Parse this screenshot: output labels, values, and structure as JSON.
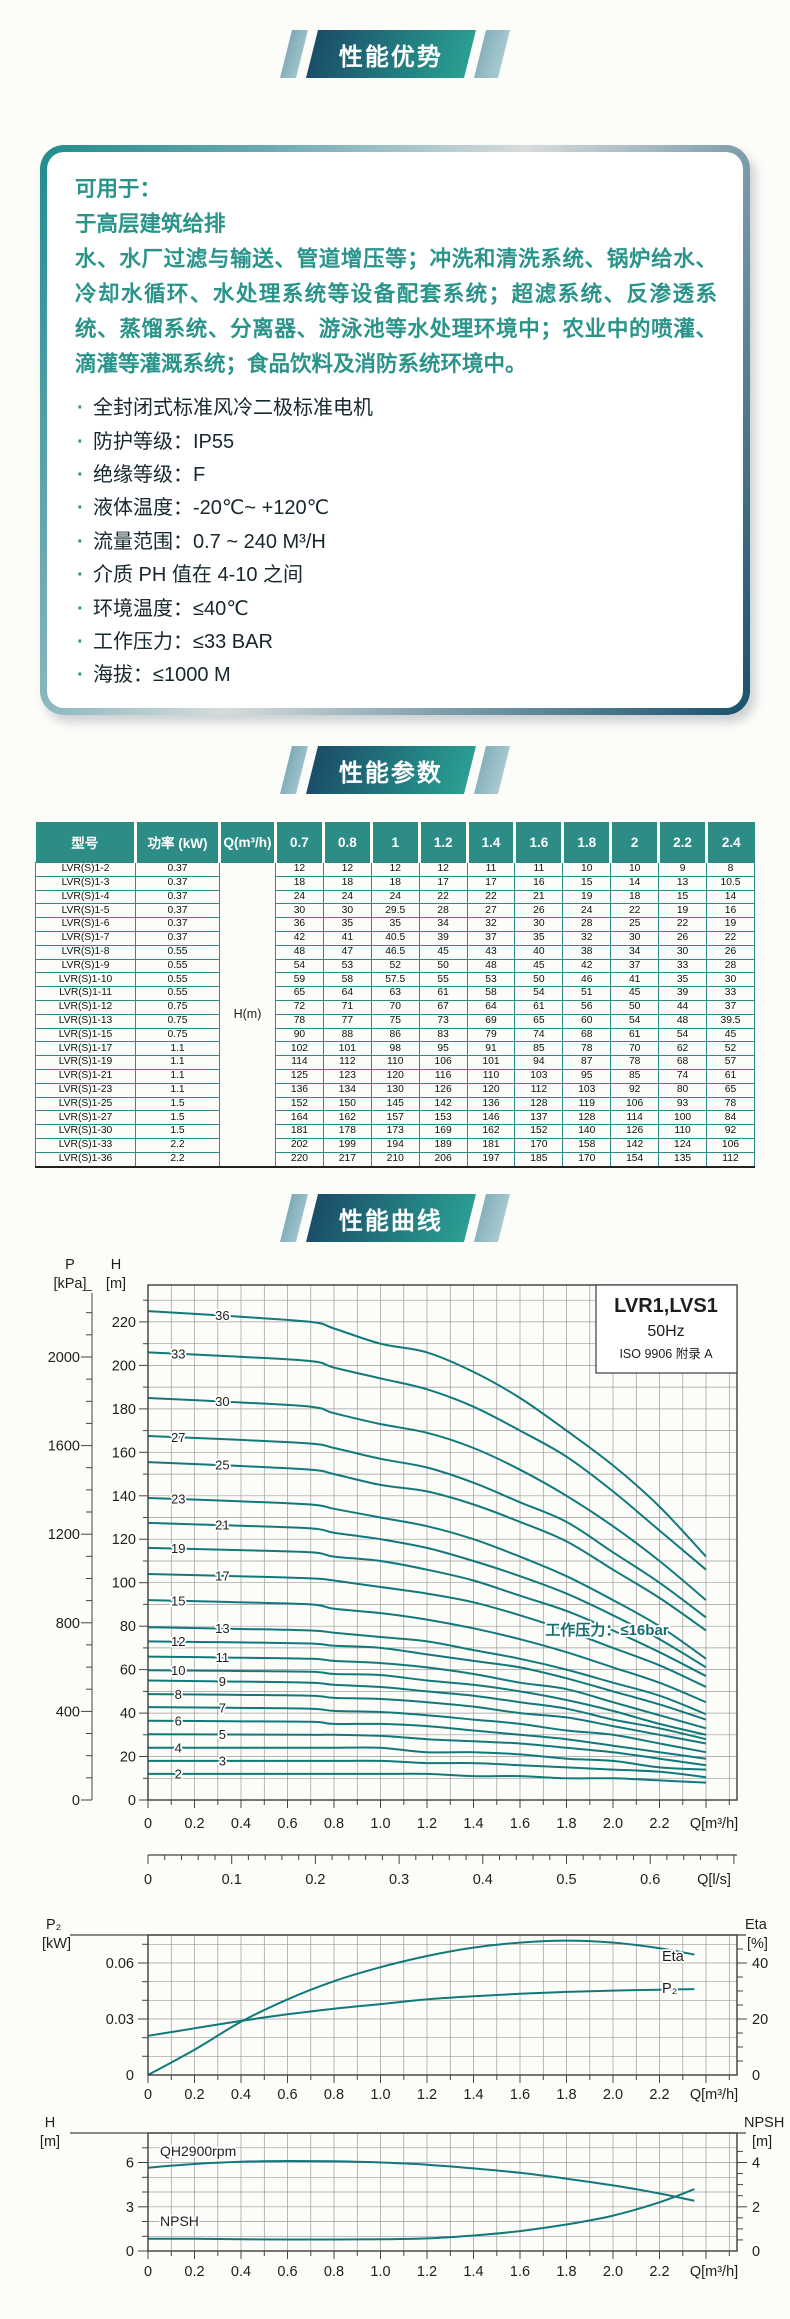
{
  "page": {
    "background": "#fcfcf9",
    "accent_teal": "#2a948b",
    "curve_color": "#12797b",
    "header_gradient": [
      "#1a4c68",
      "#2aa092"
    ],
    "table_header_color": "#2e8c87"
  },
  "sections": {
    "advantages": {
      "title": "性能优势"
    },
    "parameters": {
      "title": "性能参数"
    },
    "curves": {
      "title": "性能曲线"
    }
  },
  "intro": {
    "paragraph": "可用于：\n于高层建筑给排\n水、水厂过滤与输送、管道增压等；冲洗和清洗系统、锅炉给水、冷却水循环、水处理系统等设备配套系统；超滤系统、反渗透系统、蒸馏系统、分离器、游泳池等水处理环境中；农业中的喷灌、滴灌等灌溉系统；食品饮料及消防系统环境中。",
    "bullets": [
      "全封闭式标准风冷二极标准电机",
      "防护等级：IP55",
      "绝缘等级：F",
      "液体温度：-20℃~ +120℃",
      "流量范围：0.7 ~ 240 M³/H",
      "介质 PH 值在 4-10 之间",
      "环境温度：≤40℃",
      "工作压力：≤33 BAR",
      "海拔：≤1000 M"
    ]
  },
  "table": {
    "headers": [
      "型号",
      "功率 (kW)",
      "Q(m³/h)",
      "0.7",
      "0.8",
      "1",
      "1.2",
      "1.4",
      "1.6",
      "1.8",
      "2",
      "2.2",
      "2.4"
    ],
    "merged_column_label": "H(m)",
    "rows": [
      {
        "model": "LVR(S)1-2",
        "power": "0.37",
        "h_values": [
          12,
          12,
          12,
          12,
          11,
          11,
          10,
          10,
          9,
          8
        ]
      },
      {
        "model": "LVR(S)1-3",
        "power": "0.37",
        "h_values": [
          18,
          18,
          18,
          17,
          17,
          16,
          15,
          14,
          13,
          10.5
        ]
      },
      {
        "model": "LVR(S)1-4",
        "power": "0.37",
        "h_values": [
          24,
          24,
          24,
          22,
          22,
          21,
          19,
          18,
          15,
          14
        ]
      },
      {
        "model": "LVR(S)1-5",
        "power": "0.37",
        "h_values": [
          30,
          30,
          29.5,
          28,
          27,
          26,
          24,
          22,
          19,
          16
        ]
      },
      {
        "model": "LVR(S)1-6",
        "power": "0.37",
        "h_values": [
          36,
          35,
          35,
          34,
          32,
          30,
          28,
          25,
          22,
          19
        ]
      },
      {
        "model": "LVR(S)1-7",
        "power": "0.37",
        "h_values": [
          42,
          41,
          40.5,
          39,
          37,
          35,
          32,
          30,
          26,
          22
        ]
      },
      {
        "model": "LVR(S)1-8",
        "power": "0.55",
        "h_values": [
          48,
          47,
          46.5,
          45,
          43,
          40,
          38,
          34,
          30,
          26
        ]
      },
      {
        "model": "LVR(S)1-9",
        "power": "0.55",
        "h_values": [
          54,
          53,
          52,
          50,
          48,
          45,
          42,
          37,
          33,
          28
        ]
      },
      {
        "model": "LVR(S)1-10",
        "power": "0.55",
        "h_values": [
          59,
          58,
          57.5,
          55,
          53,
          50,
          46,
          41,
          35,
          30
        ]
      },
      {
        "model": "LVR(S)1-11",
        "power": "0.55",
        "h_values": [
          65,
          64,
          63,
          61,
          58,
          54,
          51,
          45,
          39,
          33
        ]
      },
      {
        "model": "LVR(S)1-12",
        "power": "0.75",
        "h_values": [
          72,
          71,
          70,
          67,
          64,
          61,
          56,
          50,
          44,
          37
        ]
      },
      {
        "model": "LVR(S)1-13",
        "power": "0.75",
        "h_values": [
          78,
          77,
          75,
          73,
          69,
          65,
          60,
          54,
          48,
          39.5
        ]
      },
      {
        "model": "LVR(S)1-15",
        "power": "0.75",
        "h_values": [
          90,
          88,
          86,
          83,
          79,
          74,
          68,
          61,
          54,
          45
        ]
      },
      {
        "model": "LVR(S)1-17",
        "power": "1.1",
        "h_values": [
          102,
          101,
          98,
          95,
          91,
          85,
          78,
          70,
          62,
          52
        ]
      },
      {
        "model": "LVR(S)1-19",
        "power": "1.1",
        "h_values": [
          114,
          112,
          110,
          106,
          101,
          94,
          87,
          78,
          68,
          57
        ]
      },
      {
        "model": "LVR(S)1-21",
        "power": "1.1",
        "h_values": [
          125,
          123,
          120,
          116,
          110,
          103,
          95,
          85,
          74,
          61
        ]
      },
      {
        "model": "LVR(S)1-23",
        "power": "1.1",
        "h_values": [
          136,
          134,
          130,
          126,
          120,
          112,
          103,
          92,
          80,
          65
        ]
      },
      {
        "model": "LVR(S)1-25",
        "power": "1.5",
        "h_values": [
          152,
          150,
          145,
          142,
          136,
          128,
          119,
          106,
          93,
          78
        ]
      },
      {
        "model": "LVR(S)1-27",
        "power": "1.5",
        "h_values": [
          164,
          162,
          157,
          153,
          146,
          137,
          128,
          114,
          100,
          84
        ]
      },
      {
        "model": "LVR(S)1-30",
        "power": "1.5",
        "h_values": [
          181,
          178,
          173,
          169,
          162,
          152,
          140,
          126,
          110,
          92
        ]
      },
      {
        "model": "LVR(S)1-33",
        "power": "2.2",
        "h_values": [
          202,
          199,
          194,
          189,
          181,
          170,
          158,
          142,
          124,
          106
        ]
      },
      {
        "model": "LVR(S)1-36",
        "power": "2.2",
        "h_values": [
          220,
          217,
          210,
          206,
          197,
          185,
          170,
          154,
          135,
          112
        ]
      }
    ]
  },
  "chart_data": [
    {
      "id": "qh-curves",
      "type": "line",
      "title": "LVR1,LVS1",
      "subtitle": "50Hz",
      "note": "ISO 9906  附录 A",
      "annotation": "工作压力：≤16bar",
      "xlabel": "Q[m³/h]",
      "xlabel_secondary": "Q[l/s]",
      "x_ticks": [
        "0",
        "0.2",
        "0.4",
        "0.6",
        "0.8",
        "1.0",
        "1.2",
        "1.4",
        "1.6",
        "1.8",
        "2.0",
        "2.2"
      ],
      "x_ticks_secondary": [
        "0",
        "0.1",
        "0.2",
        "0.3",
        "0.4",
        "0.5",
        "0.6"
      ],
      "pressure_axis": {
        "name": "P",
        "unit": "[kPa]",
        "ticks": [
          2000,
          1600,
          1200,
          800,
          400,
          0
        ]
      },
      "head_axis": {
        "name": "H",
        "unit": "[m]",
        "ticks": [
          220,
          200,
          180,
          160,
          140,
          120,
          100,
          80,
          60,
          40,
          20,
          0
        ]
      },
      "xlim": [
        0,
        2.53
      ],
      "ylim": [
        0,
        237
      ],
      "grid": true,
      "q_points": [
        0.7,
        0.8,
        1,
        1.2,
        1.4,
        1.6,
        1.8,
        2,
        2.2,
        2.4
      ],
      "series": [
        {
          "label": "36",
          "values": [
            220,
            217,
            210,
            206,
            197,
            185,
            170,
            154,
            135,
            112
          ]
        },
        {
          "label": "33",
          "values": [
            202,
            199,
            194,
            189,
            181,
            170,
            158,
            142,
            124,
            106
          ]
        },
        {
          "label": "30",
          "values": [
            181,
            178,
            173,
            169,
            162,
            152,
            140,
            126,
            110,
            92
          ]
        },
        {
          "label": "27",
          "values": [
            164,
            162,
            157,
            153,
            146,
            137,
            128,
            114,
            100,
            84
          ]
        },
        {
          "label": "25",
          "values": [
            152,
            150,
            145,
            142,
            136,
            128,
            119,
            106,
            93,
            78
          ]
        },
        {
          "label": "23",
          "values": [
            136,
            134,
            130,
            126,
            120,
            112,
            103,
            92,
            80,
            65
          ]
        },
        {
          "label": "21",
          "values": [
            125,
            123,
            120,
            116,
            110,
            103,
            95,
            85,
            74,
            61
          ]
        },
        {
          "label": "19",
          "values": [
            114,
            112,
            110,
            106,
            101,
            94,
            87,
            78,
            68,
            57
          ]
        },
        {
          "label": "17",
          "values": [
            102,
            101,
            98,
            95,
            91,
            85,
            78,
            70,
            62,
            52
          ]
        },
        {
          "label": "15",
          "values": [
            90,
            88,
            86,
            83,
            79,
            74,
            68,
            61,
            54,
            45
          ]
        },
        {
          "label": "13",
          "values": [
            78,
            77,
            75,
            73,
            69,
            65,
            60,
            54,
            48,
            39.5
          ]
        },
        {
          "label": "12",
          "values": [
            72,
            71,
            70,
            67,
            64,
            61,
            56,
            50,
            44,
            37
          ]
        },
        {
          "label": "11",
          "values": [
            65,
            64,
            63,
            61,
            58,
            54,
            51,
            45,
            39,
            33
          ]
        },
        {
          "label": "10",
          "values": [
            59,
            58,
            57.5,
            55,
            53,
            50,
            46,
            41,
            35,
            30
          ]
        },
        {
          "label": "9",
          "values": [
            54,
            53,
            52,
            50,
            48,
            45,
            42,
            37,
            33,
            28
          ]
        },
        {
          "label": "8",
          "values": [
            48,
            47,
            46.5,
            45,
            43,
            40,
            38,
            34,
            30,
            26
          ]
        },
        {
          "label": "7",
          "values": [
            42,
            41,
            40.5,
            39,
            37,
            35,
            32,
            30,
            26,
            22
          ]
        },
        {
          "label": "6",
          "values": [
            36,
            35,
            35,
            34,
            32,
            30,
            28,
            25,
            22,
            19
          ]
        },
        {
          "label": "5",
          "values": [
            30,
            30,
            29.5,
            28,
            27,
            26,
            24,
            22,
            19,
            16
          ]
        },
        {
          "label": "4",
          "values": [
            24,
            24,
            24,
            22,
            22,
            21,
            19,
            18,
            15,
            14
          ]
        },
        {
          "label": "3",
          "values": [
            18,
            18,
            18,
            17,
            17,
            16,
            15,
            14,
            13,
            10.5
          ]
        },
        {
          "label": "2",
          "values": [
            12,
            12,
            12,
            12,
            11,
            11,
            10,
            10,
            9,
            8
          ]
        }
      ]
    },
    {
      "id": "p2-eta",
      "type": "line",
      "xlabel": "Q[m³/h]",
      "x_ticks": [
        "0",
        "0.2",
        "0.4",
        "0.6",
        "0.8",
        "1.0",
        "1.2",
        "1.4",
        "1.6",
        "1.8",
        "2.0",
        "2.2"
      ],
      "left_axis": {
        "name": "P₂",
        "unit": "[kW]",
        "ticks": [
          0.06,
          0.03,
          0
        ]
      },
      "right_axis": {
        "name": "Eta",
        "unit": "[%]",
        "ticks": [
          40,
          20,
          0
        ]
      },
      "x": [
        0,
        0.2,
        0.4,
        0.6,
        0.8,
        1.0,
        1.2,
        1.4,
        1.6,
        1.8,
        2.0,
        2.2,
        2.35
      ],
      "series": [
        {
          "name": "Eta",
          "axis": "right",
          "values": [
            0,
            9,
            19,
            27,
            33.5,
            38.5,
            42.5,
            45.5,
            47.3,
            48,
            47.3,
            45.3,
            43
          ]
        },
        {
          "name": "P₂",
          "axis": "left",
          "values": [
            0.021,
            0.025,
            0.029,
            0.0325,
            0.0355,
            0.038,
            0.0405,
            0.0422,
            0.0435,
            0.0445,
            0.0452,
            0.0457,
            0.046
          ]
        }
      ]
    },
    {
      "id": "qh-npsh",
      "type": "line",
      "xlabel": "Q[m³/h]",
      "x_ticks": [
        "0",
        "0.2",
        "0.4",
        "0.6",
        "0.8",
        "1.0",
        "1.2",
        "1.4",
        "1.6",
        "1.8",
        "2.0",
        "2.2"
      ],
      "left_axis": {
        "name": "H",
        "unit": "[m]",
        "ticks": [
          6,
          3,
          0
        ]
      },
      "right_axis": {
        "name": "NPSH",
        "unit": "[m]",
        "ticks": [
          4,
          2,
          0
        ]
      },
      "x": [
        0,
        0.2,
        0.4,
        0.6,
        0.8,
        1.0,
        1.2,
        1.4,
        1.6,
        1.8,
        2.0,
        2.2,
        2.35
      ],
      "series": [
        {
          "name": "QH2900rpm",
          "axis": "left",
          "values": [
            5.65,
            5.9,
            6.05,
            6.1,
            6.08,
            6.0,
            5.85,
            5.6,
            5.3,
            4.9,
            4.45,
            3.9,
            3.4
          ]
        },
        {
          "name": "NPSH",
          "axis": "right",
          "values": [
            0.55,
            0.55,
            0.53,
            0.52,
            0.52,
            0.53,
            0.57,
            0.7,
            0.9,
            1.2,
            1.6,
            2.2,
            2.8
          ]
        }
      ]
    }
  ]
}
